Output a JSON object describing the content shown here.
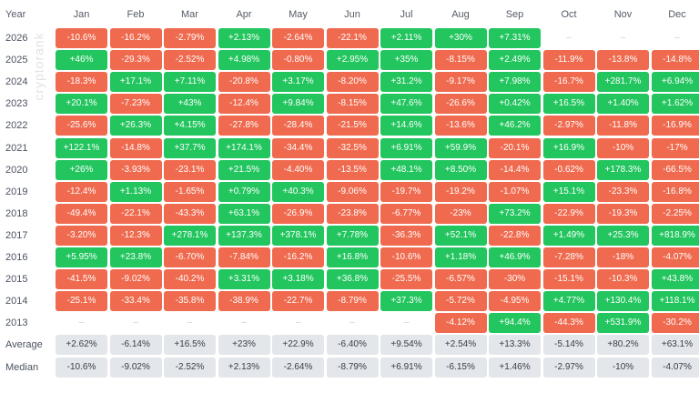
{
  "chart_data": {
    "type": "table",
    "title": "",
    "row_header_label": "Year",
    "months": [
      "Jan",
      "Feb",
      "Mar",
      "Apr",
      "May",
      "Jun",
      "Jul",
      "Aug",
      "Sep",
      "Oct",
      "Nov",
      "Dec"
    ],
    "rows": [
      {
        "year": "2026",
        "values": [
          "-10.6%",
          "-16.2%",
          "-2.79%",
          "+2.13%",
          "-2.64%",
          "-22.1%",
          "+2.11%",
          "+30%",
          "+7.31%",
          "–",
          "–",
          "–"
        ]
      },
      {
        "year": "2025",
        "values": [
          "+46%",
          "-29.3%",
          "-2.52%",
          "+4.98%",
          "-0.80%",
          "+2.95%",
          "+35%",
          "-8.15%",
          "+2.49%",
          "-11.9%",
          "-13.8%",
          "-14.8%"
        ]
      },
      {
        "year": "2024",
        "values": [
          "-18.3%",
          "+17.1%",
          "+7.11%",
          "-20.8%",
          "+3.17%",
          "-8.20%",
          "+31.2%",
          "-9.17%",
          "+7.98%",
          "-16.7%",
          "+281.7%",
          "+6.94%"
        ]
      },
      {
        "year": "2023",
        "values": [
          "+20.1%",
          "-7.23%",
          "+43%",
          "-12.4%",
          "+9.84%",
          "-8.15%",
          "+47.6%",
          "-26.6%",
          "+0.42%",
          "+16.5%",
          "+1.40%",
          "+1.62%"
        ]
      },
      {
        "year": "2022",
        "values": [
          "-25.6%",
          "+26.3%",
          "+4.15%",
          "-27.8%",
          "-28.4%",
          "-21.5%",
          "+14.6%",
          "-13.6%",
          "+46.2%",
          "-2.97%",
          "-11.8%",
          "-16.9%"
        ]
      },
      {
        "year": "2021",
        "values": [
          "+122.1%",
          "-14.8%",
          "+37.7%",
          "+174.1%",
          "-34.4%",
          "-32.5%",
          "+6.91%",
          "+59.9%",
          "-20.1%",
          "+16.9%",
          "-10%",
          "-17%"
        ]
      },
      {
        "year": "2020",
        "values": [
          "+26%",
          "-3.93%",
          "-23.1%",
          "+21.5%",
          "-4.40%",
          "-13.5%",
          "+48.1%",
          "+8.50%",
          "-14.4%",
          "-0.62%",
          "+178.3%",
          "-66.5%"
        ]
      },
      {
        "year": "2019",
        "values": [
          "-12.4%",
          "+1.13%",
          "-1.65%",
          "+0.79%",
          "+40.3%",
          "-9.06%",
          "-19.7%",
          "-19.2%",
          "-1.07%",
          "+15.1%",
          "-23.3%",
          "-16.8%"
        ]
      },
      {
        "year": "2018",
        "values": [
          "-49.4%",
          "-22.1%",
          "-43.3%",
          "+63.1%",
          "-26.9%",
          "-23.8%",
          "-6.77%",
          "-23%",
          "+73.2%",
          "-22.9%",
          "-19.3%",
          "-2.25%"
        ]
      },
      {
        "year": "2017",
        "values": [
          "-3.20%",
          "-12.3%",
          "+278.1%",
          "+137.3%",
          "+378.1%",
          "+7.78%",
          "-36.3%",
          "+52.1%",
          "-22.8%",
          "+1.49%",
          "+25.3%",
          "+818.9%"
        ]
      },
      {
        "year": "2016",
        "values": [
          "+5.95%",
          "+23.8%",
          "-6.70%",
          "-7.84%",
          "-16.2%",
          "+16.8%",
          "-10.6%",
          "+1.18%",
          "+46.9%",
          "-7.28%",
          "-18%",
          "-4.07%"
        ]
      },
      {
        "year": "2015",
        "values": [
          "-41.5%",
          "-9.02%",
          "-40.2%",
          "+3.31%",
          "+3.18%",
          "+36.8%",
          "-25.5%",
          "-6.57%",
          "-30%",
          "-15.1%",
          "-10.3%",
          "+43.8%"
        ]
      },
      {
        "year": "2014",
        "values": [
          "-25.1%",
          "-33.4%",
          "-35.8%",
          "-38.9%",
          "-22.7%",
          "-8.79%",
          "+37.3%",
          "-5.72%",
          "-4.95%",
          "+4.77%",
          "+130.4%",
          "+118.1%"
        ]
      },
      {
        "year": "2013",
        "values": [
          "–",
          "–",
          "–",
          "–",
          "–",
          "–",
          "–",
          "-4.12%",
          "+94.4%",
          "-44.3%",
          "+531.9%",
          "-30.2%"
        ]
      }
    ],
    "summary": [
      {
        "label": "Average",
        "values": [
          "+2.62%",
          "-6.14%",
          "+16.5%",
          "+23%",
          "+22.9%",
          "-6.40%",
          "+9.54%",
          "+2.54%",
          "+13.3%",
          "-5.14%",
          "+80.2%",
          "+63.1%"
        ]
      },
      {
        "label": "Median",
        "values": [
          "-10.6%",
          "-9.02%",
          "-2.52%",
          "+2.13%",
          "-2.64%",
          "-8.79%",
          "+6.91%",
          "-6.15%",
          "+1.46%",
          "-2.97%",
          "-10%",
          "-4.07%"
        ]
      }
    ],
    "colors": {
      "positive": "#22c55e",
      "negative": "#ef6a4e",
      "summary": "#e3e6ea",
      "empty_text": "#c8ccd3"
    }
  },
  "watermark": "cryptorank"
}
